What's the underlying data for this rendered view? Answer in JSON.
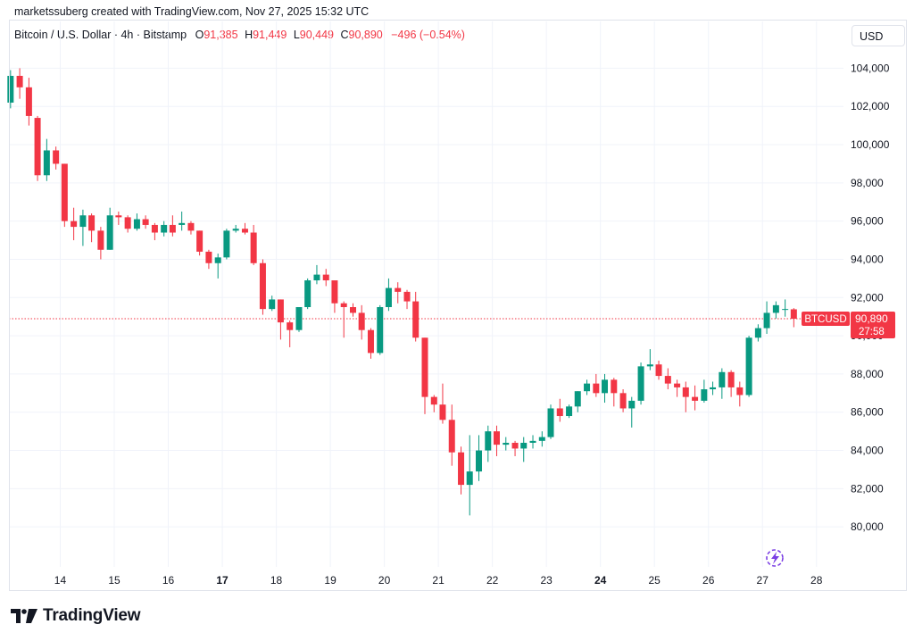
{
  "header": {
    "attribution": "marketssuberg created with TradingView.com, Nov 27, 2025 15:32 UTC",
    "symbol_desc": "Bitcoin / U.S. Dollar · 4h · Bitstamp",
    "o_label": "O",
    "o_value": "91,385",
    "h_label": "H",
    "h_value": "91,449",
    "l_label": "L",
    "l_value": "90,449",
    "c_label": "C",
    "c_value": "90,890",
    "change": "−496 (−0.54%)",
    "currency": "USD"
  },
  "brand": {
    "name": "TradingView"
  },
  "icons": {
    "logo": "tradingview-logo-icon",
    "replay": "lightning-replay-icon"
  },
  "colors": {
    "up": "#089981",
    "down": "#f23645",
    "grid": "#f0f3fa",
    "text": "#131722",
    "price_line": "#f23645"
  },
  "chart_data": {
    "type": "candlestick",
    "symbol": "BTCUSD",
    "interval": "4h",
    "ylim": [
      78000,
      105000
    ],
    "yticks": [
      80000,
      82000,
      84000,
      86000,
      88000,
      90000,
      92000,
      94000,
      96000,
      98000,
      100000,
      102000,
      104000
    ],
    "ytick_labels": [
      "80,000",
      "82,000",
      "84,000",
      "86,000",
      "88,000",
      "90,000",
      "92,000",
      "94,000",
      "96,000",
      "98,000",
      "100,000",
      "102,000",
      "104,000"
    ],
    "xlim": [
      13.05,
      28.5
    ],
    "xticks": [
      14,
      15,
      16,
      17,
      18,
      19,
      20,
      21,
      22,
      23,
      24,
      25,
      26,
      27,
      28
    ],
    "xtick_labels": [
      "14",
      "15",
      "16",
      "17",
      "18",
      "19",
      "20",
      "21",
      "22",
      "23",
      "24",
      "25",
      "26",
      "27",
      "28"
    ],
    "xtick_bold": [
      "17",
      "24"
    ],
    "last_price": 90890,
    "last_price_label": "90,890",
    "countdown": "27:58",
    "symbol_tag": "BTCUSD",
    "candles": [
      [
        13.08,
        102200,
        103600,
        103900,
        101900
      ],
      [
        13.25,
        103600,
        103000,
        104000,
        102400
      ],
      [
        13.42,
        103000,
        101500,
        103500,
        101000
      ],
      [
        13.58,
        101400,
        98400,
        101500,
        98100
      ],
      [
        13.75,
        98400,
        99700,
        100300,
        98100
      ],
      [
        13.92,
        99700,
        99000,
        99900,
        98700
      ],
      [
        14.08,
        99000,
        96000,
        99000,
        95700
      ],
      [
        14.25,
        96000,
        95700,
        96700,
        95000
      ],
      [
        14.42,
        95700,
        96300,
        96600,
        94700
      ],
      [
        14.58,
        96300,
        95500,
        96400,
        94900
      ],
      [
        14.75,
        95500,
        94500,
        95700,
        94000
      ],
      [
        14.92,
        94500,
        96300,
        96700,
        94500
      ],
      [
        15.08,
        96300,
        96200,
        96500,
        95800
      ],
      [
        15.25,
        96200,
        95600,
        96300,
        95400
      ],
      [
        15.42,
        95600,
        96100,
        96400,
        95500
      ],
      [
        15.58,
        96100,
        95800,
        96300,
        95600
      ],
      [
        15.75,
        95800,
        95400,
        95900,
        95000
      ],
      [
        15.92,
        95400,
        95800,
        96000,
        95200
      ],
      [
        16.08,
        95800,
        95400,
        96300,
        95200
      ],
      [
        16.25,
        95800,
        95900,
        96500,
        95500
      ],
      [
        16.42,
        95900,
        95500,
        96000,
        95300
      ],
      [
        16.58,
        95500,
        94400,
        95500,
        94200
      ],
      [
        16.75,
        94400,
        93800,
        94500,
        93500
      ],
      [
        16.92,
        93800,
        94100,
        94300,
        93000
      ],
      [
        17.08,
        94100,
        95500,
        95600,
        94000
      ],
      [
        17.25,
        95500,
        95600,
        95800,
        95400
      ],
      [
        17.42,
        95600,
        95400,
        95900,
        95300
      ],
      [
        17.58,
        95400,
        93800,
        95800,
        93700
      ],
      [
        17.75,
        93800,
        91400,
        94000,
        91100
      ],
      [
        17.92,
        91400,
        91900,
        92100,
        91300
      ],
      [
        18.08,
        91900,
        90700,
        91900,
        89800
      ],
      [
        18.25,
        90700,
        90300,
        90800,
        89400
      ],
      [
        18.42,
        90300,
        91500,
        91500,
        90200
      ],
      [
        18.58,
        91500,
        92900,
        93000,
        91400
      ],
      [
        18.75,
        92900,
        93200,
        93700,
        92700
      ],
      [
        18.92,
        93200,
        92900,
        93500,
        92600
      ],
      [
        19.08,
        92900,
        91700,
        92900,
        91200
      ],
      [
        19.25,
        91700,
        91500,
        91800,
        89900
      ],
      [
        19.42,
        91500,
        91200,
        91700,
        91000
      ],
      [
        19.58,
        91200,
        90300,
        91600,
        89800
      ],
      [
        19.75,
        90300,
        89100,
        90400,
        88800
      ],
      [
        19.92,
        89100,
        91500,
        91600,
        89000
      ],
      [
        20.08,
        91500,
        92500,
        93000,
        91300
      ],
      [
        20.25,
        92500,
        92300,
        92800,
        91700
      ],
      [
        20.42,
        92300,
        91800,
        92400,
        91400
      ],
      [
        20.58,
        91800,
        89900,
        92300,
        89700
      ],
      [
        20.75,
        89900,
        86800,
        89900,
        85900
      ],
      [
        20.92,
        86800,
        86400,
        86900,
        86000
      ],
      [
        21.08,
        86400,
        85600,
        87500,
        85400
      ],
      [
        21.25,
        85600,
        83900,
        86400,
        83200
      ],
      [
        21.42,
        83900,
        82200,
        84200,
        81700
      ],
      [
        21.58,
        82200,
        82900,
        84800,
        80600
      ],
      [
        21.75,
        82900,
        84000,
        84800,
        82400
      ],
      [
        21.92,
        84000,
        85000,
        85300,
        83400
      ],
      [
        22.08,
        85000,
        84300,
        85300,
        83700
      ],
      [
        22.25,
        84300,
        84400,
        84700,
        84000
      ],
      [
        22.42,
        84400,
        84100,
        84500,
        83700
      ],
      [
        22.58,
        84100,
        84400,
        84700,
        83400
      ],
      [
        22.75,
        84400,
        84500,
        84800,
        84100
      ],
      [
        22.92,
        84500,
        84700,
        85000,
        84200
      ],
      [
        23.08,
        84700,
        86200,
        86400,
        84600
      ],
      [
        23.25,
        86200,
        85800,
        86700,
        85500
      ],
      [
        23.42,
        85800,
        86300,
        86400,
        85700
      ],
      [
        23.58,
        86300,
        87100,
        87100,
        86000
      ],
      [
        23.75,
        87100,
        87500,
        87700,
        86900
      ],
      [
        23.92,
        87500,
        87000,
        88000,
        86800
      ],
      [
        24.08,
        87000,
        87700,
        88000,
        86500
      ],
      [
        24.25,
        87700,
        87000,
        87800,
        86300
      ],
      [
        24.42,
        87000,
        86200,
        87200,
        86000
      ],
      [
        24.58,
        86200,
        86600,
        86800,
        85200
      ],
      [
        24.75,
        86600,
        88400,
        88600,
        86400
      ],
      [
        24.92,
        88400,
        88500,
        89300,
        88200
      ],
      [
        25.08,
        88500,
        87900,
        88700,
        87700
      ],
      [
        25.25,
        87900,
        87500,
        88300,
        87200
      ],
      [
        25.42,
        87500,
        87300,
        87700,
        86800
      ],
      [
        25.58,
        87300,
        86800,
        87600,
        86000
      ],
      [
        25.75,
        86800,
        86600,
        87400,
        86100
      ],
      [
        25.92,
        86600,
        87200,
        87700,
        86500
      ],
      [
        26.08,
        87200,
        87300,
        87600,
        86900
      ],
      [
        26.25,
        87300,
        88100,
        88300,
        86700
      ],
      [
        26.42,
        88100,
        87300,
        88200,
        86800
      ],
      [
        26.58,
        87300,
        86900,
        87600,
        86300
      ],
      [
        26.75,
        86900,
        89900,
        90000,
        86800
      ],
      [
        26.92,
        89900,
        90400,
        90600,
        89700
      ],
      [
        27.08,
        90400,
        91200,
        91800,
        90100
      ],
      [
        27.25,
        91200,
        91600,
        91800,
        90900
      ],
      [
        27.42,
        91400,
        91400,
        91900,
        91000
      ],
      [
        27.58,
        91385,
        90890,
        91449,
        90449
      ]
    ]
  }
}
